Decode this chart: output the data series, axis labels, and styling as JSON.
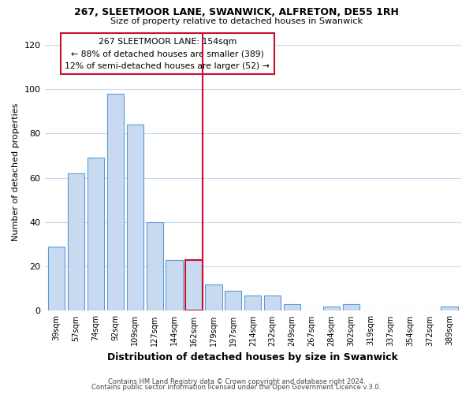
{
  "title1": "267, SLEETMOOR LANE, SWANWICK, ALFRETON, DE55 1RH",
  "title2": "Size of property relative to detached houses in Swanwick",
  "xlabel": "Distribution of detached houses by size in Swanwick",
  "ylabel": "Number of detached properties",
  "bar_labels": [
    "39sqm",
    "57sqm",
    "74sqm",
    "92sqm",
    "109sqm",
    "127sqm",
    "144sqm",
    "162sqm",
    "179sqm",
    "197sqm",
    "214sqm",
    "232sqm",
    "249sqm",
    "267sqm",
    "284sqm",
    "302sqm",
    "319sqm",
    "337sqm",
    "354sqm",
    "372sqm",
    "389sqm"
  ],
  "bar_values": [
    29,
    62,
    69,
    98,
    84,
    40,
    23,
    23,
    12,
    9,
    7,
    7,
    3,
    0,
    2,
    3,
    0,
    0,
    0,
    0,
    2
  ],
  "bar_color": "#c8daf0",
  "bar_edge_color": "#5b9bd5",
  "highlight_bar_index": 7,
  "highlight_edge_color": "#c8102e",
  "vline_color": "#c8102e",
  "annotation_line1": "267 SLEETMOOR LANE: 154sqm",
  "annotation_line2": "← 88% of detached houses are smaller (389)",
  "annotation_line3": "12% of semi-detached houses are larger (52) →",
  "annotation_box_color": "#ffffff",
  "annotation_box_edge": "#c8102e",
  "ylim": [
    0,
    125
  ],
  "yticks": [
    0,
    20,
    40,
    60,
    80,
    100,
    120
  ],
  "footer1": "Contains HM Land Registry data © Crown copyright and database right 2024.",
  "footer2": "Contains public sector information licensed under the Open Government Licence v.3.0.",
  "background_color": "#ffffff",
  "grid_color": "#c8daf0"
}
